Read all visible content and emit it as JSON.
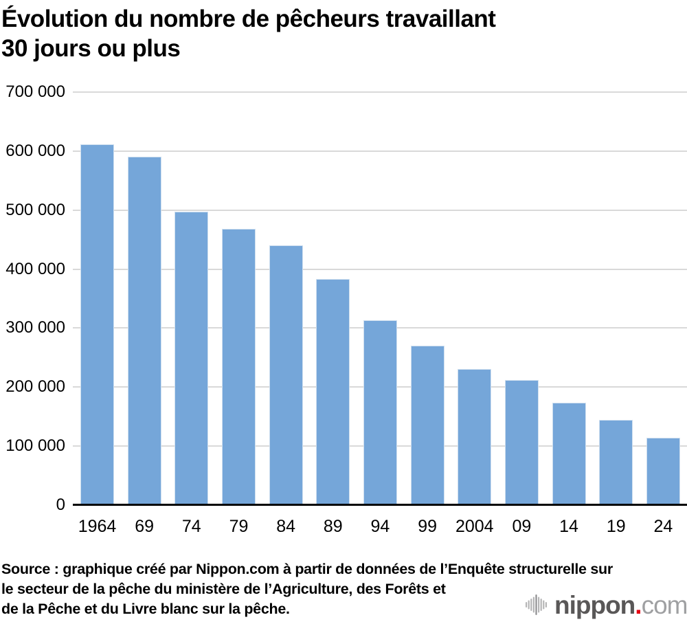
{
  "header": {
    "title_line1": "Évolution du nombre de pêcheurs travaillant",
    "title_line2": "30 jours ou plus"
  },
  "chart_data": {
    "type": "bar",
    "title": "Évolution du nombre de pêcheurs travaillant 30 jours ou plus",
    "categories": [
      "1964",
      "69",
      "74",
      "79",
      "84",
      "89",
      "94",
      "99",
      "2004",
      "09",
      "14",
      "19",
      "24"
    ],
    "values": [
      612000,
      590000,
      497000,
      468000,
      440000,
      383000,
      313000,
      270000,
      231000,
      212000,
      173000,
      145000,
      114000
    ],
    "xlabel": "",
    "ylabel": "",
    "ylim": [
      0,
      700000
    ],
    "ytick_labels": [
      "700 000",
      "600 000",
      "500 000",
      "400 000",
      "300 000",
      "200 000",
      "100 000",
      "0"
    ],
    "grid": true,
    "legend": false,
    "bar_color": "#75a6d9",
    "bar_border_color": "#cfdfef",
    "gridline_color": "#d9d9d9",
    "axis_color": "#000000",
    "text_color": "#000000"
  },
  "source": {
    "lines": [
      "Source : graphique créé par Nippon.com à partir de données de l’Enquête structurelle sur",
      "le secteur de la pêche du ministère de l’Agriculture, des Forêts et",
      "de la Pêche et du Livre blanc sur la pêche."
    ]
  },
  "logo": {
    "brand": "nippon",
    "dot": ".",
    "tld": "com",
    "brand_color": "#595757",
    "dot_color": "#e60012",
    "tld_color": "#9fa0a2",
    "icon_color": "#b5b5b6",
    "icon_center_color": "#8e8e90"
  }
}
